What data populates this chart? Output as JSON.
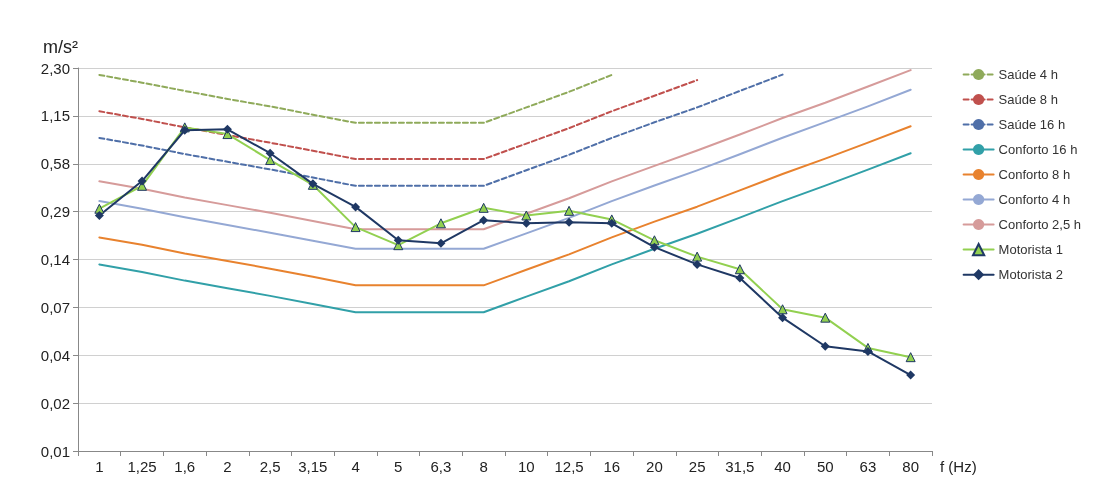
{
  "chart_data": {
    "type": "line",
    "ylabel": "m/s²",
    "xlabel": "f (Hz)",
    "log": "y",
    "grid": "y",
    "legend": "right",
    "categories": [
      "1",
      "1,25",
      "1,6",
      "2",
      "2,5",
      "3,15",
      "4",
      "5",
      "6,3",
      "8",
      "10",
      "12,5",
      "16",
      "20",
      "25",
      "31,5",
      "40",
      "50",
      "63",
      "80"
    ],
    "ylim": [
      0.009,
      2.3
    ],
    "yticks": [
      {
        "value": 0.009,
        "label": "0,01"
      },
      {
        "value": 0.018,
        "label": "0,02"
      },
      {
        "value": 0.036,
        "label": "0,04"
      },
      {
        "value": 0.072,
        "label": "0,07"
      },
      {
        "value": 0.144,
        "label": "0,14"
      },
      {
        "value": 0.2875,
        "label": "0,29"
      },
      {
        "value": 0.575,
        "label": "0,58"
      },
      {
        "value": 1.15,
        "label": "1,15"
      },
      {
        "value": 2.3,
        "label": "2,30"
      }
    ],
    "series": [
      {
        "name": "Saúde 4 h",
        "color": "#8faa5a",
        "line_style": "dashed",
        "marker": "none",
        "values": [
          2.08,
          1.86,
          1.65,
          1.47,
          1.32,
          1.17,
          1.04,
          1.04,
          1.04,
          1.04,
          1.3,
          1.63,
          2.08,
          null,
          null,
          null,
          null,
          null,
          null,
          null
        ]
      },
      {
        "name": "Saúde 8 h",
        "color": "#c0504d",
        "line_style": "dashed",
        "marker": "none",
        "values": [
          1.23,
          1.1,
          0.975,
          0.872,
          0.78,
          0.694,
          0.616,
          0.616,
          0.616,
          0.616,
          0.77,
          0.963,
          1.23,
          1.54,
          1.93,
          null,
          null,
          null,
          null,
          null
        ]
      },
      {
        "name": "Saúde 16 h",
        "color": "#4f6fa8",
        "line_style": "dashed",
        "marker": "none",
        "values": [
          0.836,
          0.749,
          0.662,
          0.592,
          0.53,
          0.471,
          0.418,
          0.418,
          0.418,
          0.418,
          0.524,
          0.655,
          0.836,
          1.048,
          1.3,
          1.65,
          2.09,
          null,
          null,
          null
        ]
      },
      {
        "name": "Conforto 16 h",
        "color": "#31a0a8",
        "line_style": "solid",
        "marker": "none",
        "values": [
          0.134,
          0.12,
          0.106,
          0.095,
          0.085,
          0.0755,
          0.067,
          0.067,
          0.067,
          0.067,
          0.084,
          0.105,
          0.134,
          0.168,
          0.209,
          0.264,
          0.335,
          0.419,
          0.528,
          0.67
        ]
      },
      {
        "name": "Conforto 8 h",
        "color": "#e8822e",
        "line_style": "solid",
        "marker": "none",
        "values": [
          0.198,
          0.178,
          0.157,
          0.141,
          0.126,
          0.112,
          0.099,
          0.099,
          0.099,
          0.099,
          0.124,
          0.155,
          0.198,
          0.249,
          0.309,
          0.391,
          0.496,
          0.62,
          0.781,
          0.99
        ]
      },
      {
        "name": "Conforto 4 h",
        "color": "#94a8d4",
        "line_style": "solid",
        "marker": "none",
        "values": [
          0.335,
          0.3,
          0.265,
          0.237,
          0.212,
          0.189,
          0.168,
          0.168,
          0.168,
          0.168,
          0.21,
          0.263,
          0.335,
          0.42,
          0.523,
          0.66,
          0.838,
          1.05,
          1.32,
          1.68
        ]
      },
      {
        "name": "Conforto 2,5 h",
        "color": "#d69b9a",
        "line_style": "solid",
        "marker": "none",
        "values": [
          0.446,
          0.4,
          0.353,
          0.316,
          0.283,
          0.251,
          0.223,
          0.223,
          0.223,
          0.223,
          0.279,
          0.349,
          0.446,
          0.558,
          0.697,
          0.878,
          1.115,
          1.39,
          1.76,
          2.23
        ]
      },
      {
        "name": "Motorista 1",
        "color": "#92d050",
        "line_style": "solid",
        "marker": "triangle",
        "values": [
          0.3,
          0.418,
          0.974,
          0.884,
          0.607,
          0.424,
          0.23,
          0.177,
          0.243,
          0.304,
          0.272,
          0.291,
          0.257,
          0.19,
          0.15,
          0.125,
          0.07,
          0.062,
          0.04,
          0.035
        ]
      },
      {
        "name": "Motorista 2",
        "color": "#1f3864",
        "line_style": "solid",
        "marker": "diamond",
        "values": [
          0.272,
          0.448,
          0.934,
          0.947,
          0.67,
          0.43,
          0.308,
          0.19,
          0.182,
          0.254,
          0.243,
          0.247,
          0.243,
          0.172,
          0.134,
          0.11,
          0.062,
          0.041,
          0.038,
          0.027
        ]
      }
    ]
  }
}
